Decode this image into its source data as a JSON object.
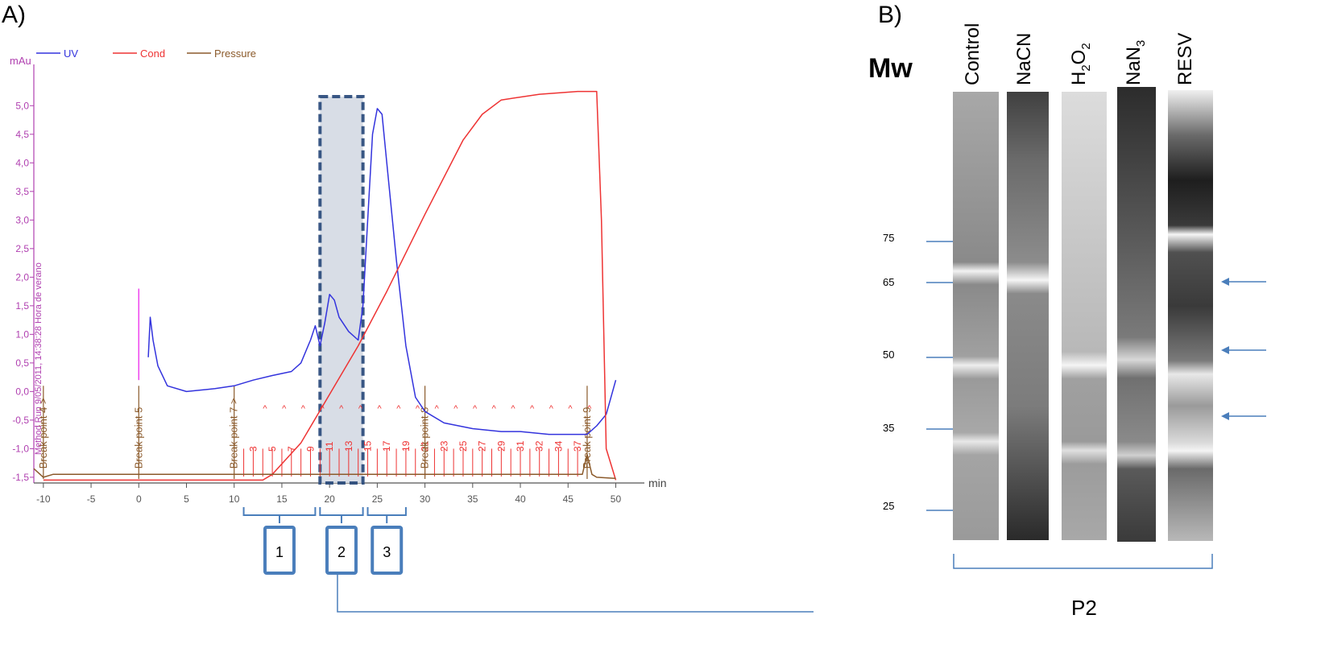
{
  "panel_a": {
    "label": "A)",
    "legend": [
      {
        "name": "UV",
        "color": "#3333dd"
      },
      {
        "name": "Cond",
        "color": "#ee3333"
      },
      {
        "name": "Pressure",
        "color": "#8b5a2b"
      }
    ],
    "y_unit": "mAu",
    "x_unit": "min",
    "y_ticks": [
      "-1,5",
      "-1,0",
      "-0,5",
      "0,0",
      "0,5",
      "1,0",
      "1,5",
      "2,0",
      "2,5",
      "3,0",
      "3,5",
      "4,0",
      "4,5",
      "5,0"
    ],
    "x_ticks": [
      "-10",
      "-5",
      "0",
      "5",
      "10",
      "15",
      "20",
      "25",
      "30",
      "35",
      "40",
      "45",
      "50"
    ],
    "method_run_text": "Method Run 9/05/2011, 14:38:28 Hora de verano",
    "break_points": [
      {
        "label": "Break point 4 >",
        "x": -10
      },
      {
        "label": "Break point 5",
        "x": 0
      },
      {
        "label": "Break point 7 >",
        "x": 10
      },
      {
        "label": "Break point 8",
        "x": 30
      },
      {
        "label": "Break point 9",
        "x": 47
      }
    ],
    "fraction_labels": [
      "3",
      "5",
      "7",
      "9",
      "11",
      "13",
      "15",
      "17",
      "19",
      "21",
      "23",
      "25",
      "27",
      "29",
      "31",
      "32",
      "34",
      "37"
    ],
    "fraction_groups": [
      {
        "label": "1",
        "range": [
          11,
          18.5
        ]
      },
      {
        "label": "2",
        "range": [
          19,
          23.5
        ]
      },
      {
        "label": "3",
        "range": [
          24,
          28
        ]
      }
    ],
    "pool_label": "P2"
  },
  "chart_data": {
    "type": "line",
    "xlabel": "min",
    "ylabel": "mAu",
    "xlim": [
      -11,
      53
    ],
    "ylim": [
      -1.6,
      5.3
    ],
    "highlight_x_range": [
      19,
      23.5
    ],
    "series": [
      {
        "name": "UV",
        "color": "#3333dd",
        "x": [
          1,
          1.2,
          1.5,
          2,
          3,
          5,
          8,
          10,
          12,
          14,
          16,
          17,
          18,
          18.5,
          19,
          19.5,
          20,
          20.5,
          21,
          22,
          23,
          23.5,
          24,
          24.5,
          25,
          25.5,
          26,
          27,
          28,
          29,
          30,
          32,
          35,
          38,
          40,
          43,
          46,
          47,
          48,
          49,
          50
        ],
        "y": [
          0.6,
          1.3,
          0.9,
          0.45,
          0.1,
          0.0,
          0.05,
          0.1,
          0.2,
          0.28,
          0.35,
          0.5,
          0.9,
          1.15,
          0.8,
          1.2,
          1.7,
          1.6,
          1.3,
          1.05,
          0.9,
          1.5,
          3.0,
          4.5,
          4.95,
          4.85,
          4.0,
          2.3,
          0.8,
          -0.1,
          -0.35,
          -0.55,
          -0.65,
          -0.7,
          -0.7,
          -0.75,
          -0.75,
          -0.75,
          -0.6,
          -0.4,
          0.2
        ]
      },
      {
        "name": "Cond",
        "color": "#ee3333",
        "x": [
          -10,
          13,
          14,
          17,
          20,
          23,
          26,
          30,
          34,
          36,
          38,
          42,
          46,
          48,
          48.5,
          49,
          50
        ],
        "y": [
          -1.55,
          -1.55,
          -1.45,
          -0.9,
          -0.05,
          0.8,
          1.75,
          3.1,
          4.4,
          4.85,
          5.1,
          5.2,
          5.25,
          5.25,
          3.0,
          -1.0,
          -1.55
        ]
      },
      {
        "name": "Pressure",
        "color": "#8b5a2b",
        "x": [
          -11,
          -10,
          -9,
          0,
          10,
          20,
          30,
          40,
          46.5,
          47,
          47.5,
          48,
          50
        ],
        "y": [
          -1.35,
          -1.5,
          -1.45,
          -1.45,
          -1.45,
          -1.45,
          -1.45,
          -1.45,
          -1.45,
          -1.1,
          -1.45,
          -1.5,
          -1.52
        ]
      }
    ]
  },
  "panel_b": {
    "label": "B)",
    "mw_title": "Mw",
    "mw_markers": [
      "75",
      "65",
      "50",
      "35",
      "25"
    ],
    "lanes": [
      "Control",
      "NaCN",
      "H2O2",
      "NaN3",
      "RESV"
    ],
    "bracket_label": "P2"
  }
}
